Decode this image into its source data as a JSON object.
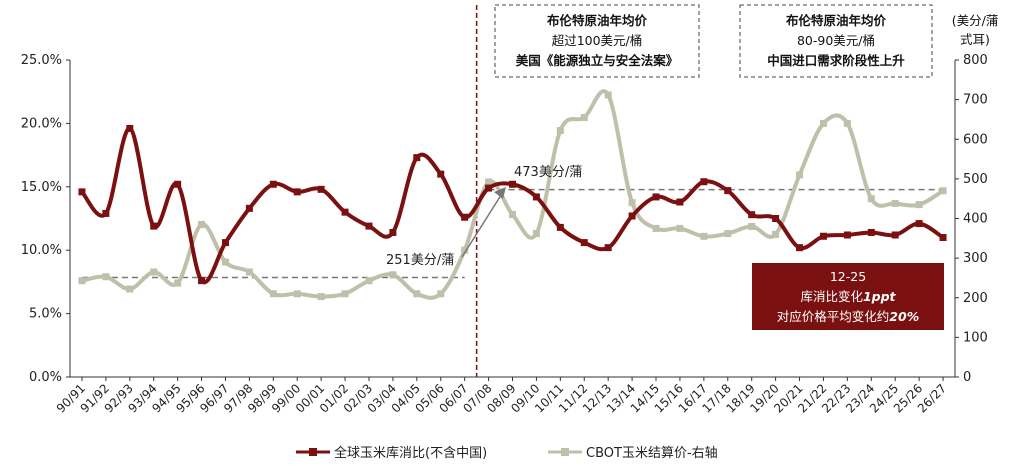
{
  "chart_data": {
    "type": "line",
    "categories": [
      "90/91",
      "91/92",
      "92/93",
      "93/94",
      "94/95",
      "95/96",
      "96/97",
      "97/98",
      "98/99",
      "99/00",
      "00/01",
      "01/02",
      "02/03",
      "03/04",
      "04/05",
      "05/06",
      "06/07",
      "07/08",
      "08/09",
      "09/10",
      "10/11",
      "11/12",
      "12/13",
      "13/14",
      "14/15",
      "15/16",
      "16/17",
      "17/18",
      "18/19",
      "19/20",
      "20/21",
      "21/22",
      "22/23",
      "23/24",
      "24/25",
      "25/26",
      "26/27"
    ],
    "left_axis": {
      "ticks": [
        "0.0%",
        "5.0%",
        "10.0%",
        "15.0%",
        "20.0%",
        "25.0%"
      ],
      "ylim": [
        0,
        25
      ]
    },
    "right_axis": {
      "ticks": [
        "0",
        "100",
        "200",
        "300",
        "400",
        "500",
        "600",
        "700",
        "800"
      ],
      "ylim": [
        0,
        800
      ],
      "unit_line1": "(美分/蒲",
      "unit_line2": "式耳)"
    },
    "series": [
      {
        "name": "全球玉米库消比(不含中国)",
        "axis": "left",
        "color": "#7b1010",
        "values": [
          14.6,
          12.9,
          19.6,
          11.9,
          15.2,
          7.6,
          10.6,
          13.3,
          15.2,
          14.6,
          14.8,
          13.0,
          11.9,
          11.4,
          17.3,
          16.0,
          12.6,
          14.9,
          15.2,
          14.2,
          11.8,
          10.6,
          10.2,
          12.7,
          14.2,
          13.8,
          15.4,
          14.7,
          12.8,
          12.5,
          10.2,
          11.1,
          11.2,
          11.4,
          11.2,
          12.1,
          11.0
        ]
      },
      {
        "name": "CBOT玉米结算价-右轴",
        "axis": "right",
        "color": "#bfbfaa",
        "values": [
          243,
          253,
          222,
          265,
          237,
          385,
          290,
          265,
          210,
          210,
          203,
          210,
          243,
          258,
          210,
          210,
          320,
          492,
          410,
          362,
          622,
          655,
          712,
          440,
          375,
          375,
          355,
          362,
          380,
          360,
          510,
          640,
          640,
          450,
          438,
          435,
          470
        ]
      }
    ],
    "reference_lines": [
      {
        "value": 251,
        "axis": "right",
        "from": "90/91",
        "to": "06/07",
        "label": "251美分/蒲"
      },
      {
        "value": 473,
        "axis": "right",
        "from": "07/08",
        "to": "26/27",
        "label": "473美分/蒲"
      }
    ],
    "divider_after": "06/07",
    "boxes": [
      {
        "line1": "布伦特原油年均价",
        "line2": "超过100美元/桶",
        "line3": "美国《能源独立与安全法案》"
      },
      {
        "line1": "布伦特原油年均价",
        "line2": "80-90美元/桶",
        "line3": "中国进口需求阶段性上升"
      }
    ],
    "note": {
      "line1": "12-25",
      "line2_prefix": "库消比变化",
      "line2_bold": "1ppt",
      "line3_prefix": "对应价格平均变化约",
      "line3_bold": "20%",
      "color": "#7b1010"
    },
    "legend_position": "bottom-center",
    "grid": false
  }
}
